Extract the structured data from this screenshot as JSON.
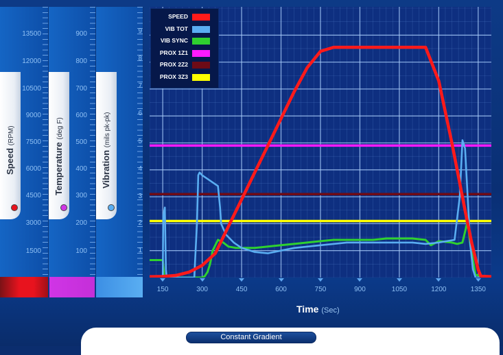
{
  "chart_data": {
    "type": "line",
    "xlabel": "Time",
    "xlabel_unit": "(Sec)",
    "xlim": [
      100,
      1400
    ],
    "ylim": [
      0,
      10
    ],
    "x_ticks": [
      150,
      300,
      450,
      600,
      750,
      900,
      1050,
      1200,
      1350
    ],
    "y_ticks": [
      1,
      2,
      3,
      4,
      5,
      6,
      7,
      8,
      9
    ],
    "grid": true,
    "legend_placement": "top-left",
    "series": [
      {
        "name": "SPEED",
        "color": "#ff1a1a",
        "x": [
          100,
          150,
          200,
          250,
          300,
          350,
          400,
          450,
          500,
          550,
          600,
          650,
          700,
          750,
          800,
          850,
          900,
          950,
          1000,
          1050,
          1100,
          1150,
          1200,
          1250,
          1300,
          1325,
          1350,
          1360,
          1400
        ],
        "y": [
          0.03,
          0.04,
          0.08,
          0.2,
          0.45,
          0.9,
          1.9,
          2.9,
          3.9,
          4.9,
          5.9,
          6.9,
          7.8,
          8.4,
          8.55,
          8.55,
          8.55,
          8.55,
          8.55,
          8.55,
          8.55,
          8.55,
          7.3,
          5.0,
          2.5,
          1.3,
          0.3,
          0.05,
          0.03
        ]
      },
      {
        "name": "VIB TOT",
        "color": "#5aaef2",
        "x": [
          100,
          150,
          152,
          158,
          162,
          165,
          270,
          280,
          285,
          290,
          300,
          360,
          368,
          372,
          390,
          420,
          450,
          500,
          550,
          600,
          650,
          700,
          750,
          800,
          850,
          900,
          950,
          1000,
          1050,
          1100,
          1150,
          1200,
          1230,
          1260,
          1280,
          1290,
          1300,
          1310,
          1320,
          1330,
          1340,
          1400
        ],
        "y": [
          0.0,
          0.0,
          2.3,
          2.6,
          0.3,
          0.0,
          0.0,
          2.0,
          3.8,
          3.9,
          3.8,
          3.4,
          2.6,
          2.0,
          1.6,
          1.3,
          1.1,
          0.95,
          0.9,
          1.0,
          1.1,
          1.15,
          1.2,
          1.25,
          1.3,
          1.3,
          1.3,
          1.3,
          1.3,
          1.3,
          1.25,
          1.3,
          1.35,
          1.4,
          3.0,
          5.1,
          4.8,
          3.0,
          1.2,
          0.3,
          0.0,
          0.0
        ]
      },
      {
        "name": "VIB SYNC",
        "color": "#2fd12f",
        "x": [
          100,
          150,
          155,
          160,
          270,
          280,
          290,
          300,
          310,
          320,
          330,
          340,
          360,
          380,
          400,
          430,
          450,
          500,
          550,
          600,
          650,
          700,
          750,
          800,
          850,
          900,
          950,
          1000,
          1050,
          1100,
          1150,
          1170,
          1200,
          1250,
          1270,
          1290,
          1300,
          1310,
          1320,
          1340,
          1400
        ],
        "y": [
          0.65,
          0.65,
          0.1,
          0.0,
          0.0,
          0.0,
          0.0,
          0.0,
          0.05,
          0.2,
          0.5,
          1.0,
          1.4,
          1.3,
          1.15,
          1.1,
          1.1,
          1.1,
          1.15,
          1.2,
          1.25,
          1.3,
          1.35,
          1.4,
          1.4,
          1.4,
          1.4,
          1.45,
          1.45,
          1.45,
          1.4,
          1.2,
          1.35,
          1.3,
          1.25,
          1.3,
          1.7,
          2.1,
          1.2,
          0.1,
          0.0
        ]
      },
      {
        "name": "PROX 1Z1",
        "color": "#ff1aff",
        "x": [
          100,
          1400
        ],
        "y": [
          4.9,
          4.9
        ]
      },
      {
        "name": "PROX 2Z2",
        "color": "#6e0b16",
        "x": [
          100,
          1400
        ],
        "y": [
          3.1,
          3.1
        ]
      },
      {
        "name": "PROX 3Z3",
        "color": "#ffff00",
        "x": [
          100,
          1400
        ],
        "y": [
          2.1,
          2.1
        ]
      }
    ]
  },
  "axes": {
    "speed": {
      "label": "Speed",
      "unit": "(RPM)",
      "ticks": [
        "13500",
        "12000",
        "10500",
        "9000",
        "7500",
        "6000",
        "4500",
        "3000",
        "1500"
      ],
      "indicator_color": "#e8131e"
    },
    "temperature": {
      "label": "Temperature",
      "unit": "(deg F)",
      "ticks": [
        "900",
        "800",
        "700",
        "600",
        "500",
        "400",
        "300",
        "200",
        "100"
      ],
      "indicator_color": "#d035e6"
    },
    "vibration": {
      "label": "Vibration",
      "unit": "(mils pk-pk)",
      "ticks": [
        "9",
        "8",
        "7",
        "6",
        "5",
        "4",
        "3",
        "2",
        "1"
      ],
      "indicator_color": "#5aaef2"
    }
  },
  "footer": {
    "mode_button_label": "Constant Gradient"
  }
}
